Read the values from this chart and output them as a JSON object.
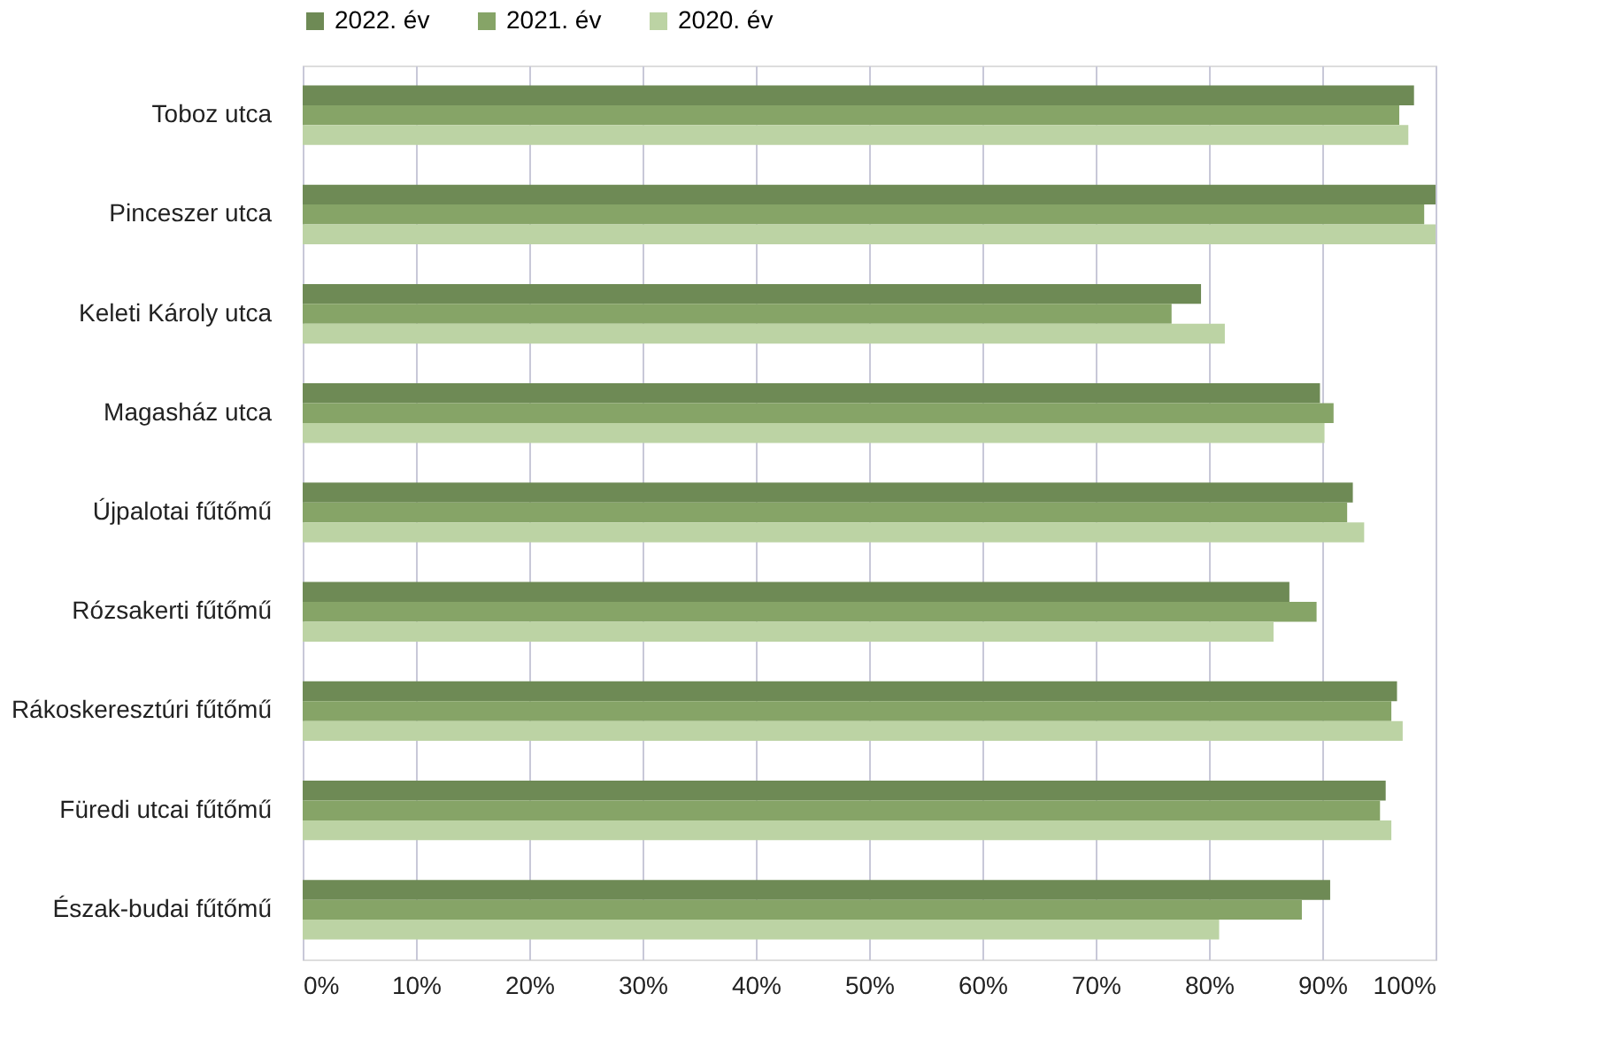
{
  "chart_data": {
    "type": "bar",
    "orientation": "horizontal",
    "categories": [
      "Toboz utca",
      "Pinceszer utca",
      "Keleti Károly utca",
      "Magasház utca",
      "Újpalotai fűtőmű",
      "Rózsakerti fűtőmű",
      "Rákoskeresztúri fűtőmű",
      "Füredi utcai fűtőmű",
      "Észak-budai fűtőmű"
    ],
    "series": [
      {
        "name": "2022. év",
        "color": "#6e8a55",
        "values": [
          98.1,
          100,
          79.3,
          89.8,
          92.7,
          87.1,
          96.6,
          95.6,
          90.7
        ]
      },
      {
        "name": "2021. év",
        "color": "#86a467",
        "values": [
          96.8,
          99.0,
          76.7,
          91.0,
          92.2,
          89.5,
          96.1,
          95.1,
          88.2
        ]
      },
      {
        "name": "2020. év",
        "color": "#bcd3a4",
        "values": [
          97.6,
          100,
          81.4,
          90.2,
          93.7,
          85.7,
          97.1,
          96.1,
          80.9
        ]
      }
    ],
    "xlim": [
      0,
      100
    ],
    "xticks": [
      {
        "value": 0,
        "label": "0%"
      },
      {
        "value": 10,
        "label": "10%"
      },
      {
        "value": 20,
        "label": "20%"
      },
      {
        "value": 30,
        "label": "30%"
      },
      {
        "value": 40,
        "label": "40%"
      },
      {
        "value": 50,
        "label": "50%"
      },
      {
        "value": 60,
        "label": "60%"
      },
      {
        "value": 70,
        "label": "70%"
      },
      {
        "value": 80,
        "label": "80%"
      },
      {
        "value": 90,
        "label": "90%"
      },
      {
        "value": 100,
        "label": "100%"
      }
    ],
    "grid": "x",
    "legend": "top"
  }
}
